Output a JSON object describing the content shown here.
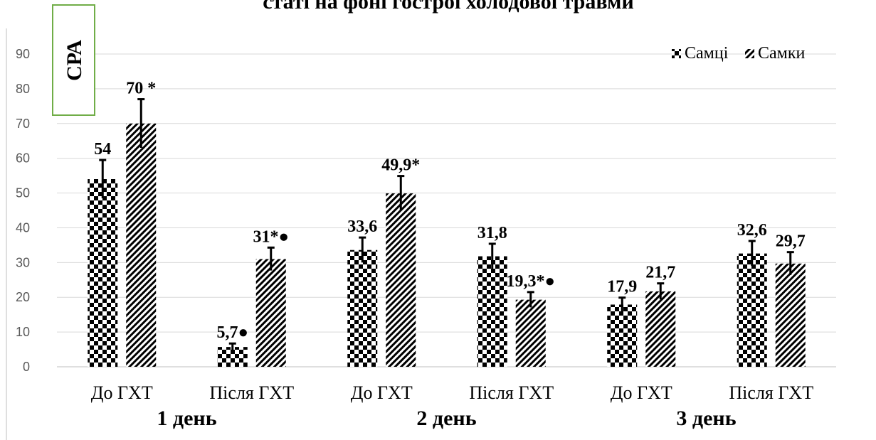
{
  "chart_data": {
    "type": "bar",
    "title": "статі на фоні гострої холодової травми",
    "badge": "СРА",
    "ylim": [
      0,
      90
    ],
    "yticks": [
      0,
      10,
      20,
      30,
      40,
      50,
      60,
      70,
      80,
      90
    ],
    "grid": true,
    "legend_position": "top-right",
    "categories": [
      "До ГХТ",
      "Після ГХТ",
      "До ГХТ",
      "Після ГХТ",
      "До ГХТ",
      "Після ГХТ"
    ],
    "groups": [
      {
        "label": "1 день",
        "span": [
          0,
          1
        ]
      },
      {
        "label": "2 день",
        "span": [
          2,
          3
        ]
      },
      {
        "label": "3 день",
        "span": [
          4,
          5
        ]
      }
    ],
    "series": [
      {
        "name": "Самці",
        "pattern": "checker",
        "values": [
          54,
          5.7,
          33.6,
          31.8,
          17.9,
          32.6
        ],
        "errors": [
          5.5,
          1,
          3.6,
          3.6,
          2,
          3.6
        ],
        "labels": [
          "54",
          "5,7●",
          "33,6",
          "31,8",
          "17,9",
          "32,6"
        ]
      },
      {
        "name": "Самки",
        "pattern": "hatch",
        "values": [
          70,
          31,
          49.9,
          19.3,
          21.7,
          29.7
        ],
        "errors": [
          7,
          3.3,
          5,
          2.2,
          2.3,
          3.3
        ],
        "labels": [
          "70 *",
          "31*●",
          "49,9*",
          "19,3*●",
          "21,7",
          "29,7"
        ]
      }
    ],
    "colors": {
      "bar": "#000000",
      "grid": "#d9d9d9",
      "badge_border": "#70ad47",
      "axis": "#bfbfbf"
    }
  }
}
